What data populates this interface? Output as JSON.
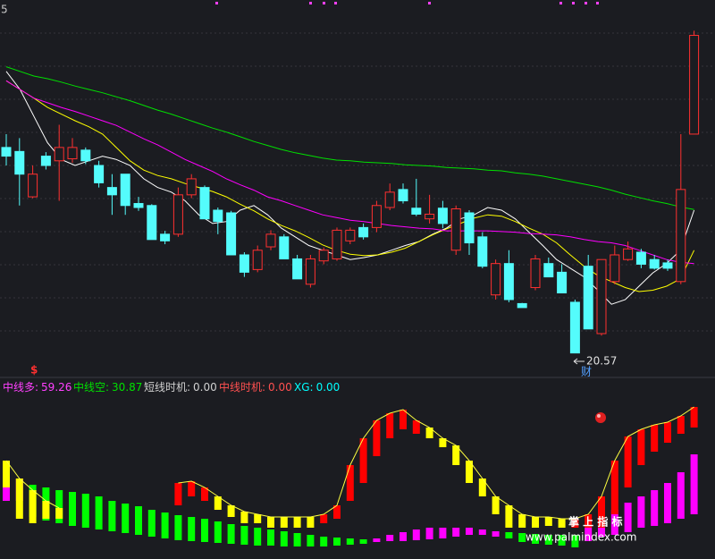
{
  "chart_data": [
    {
      "type": "candlestick",
      "corner_label": "5",
      "low_label": "20.57",
      "marker_label": "财",
      "signal_label": "$",
      "up_color": "#ff3030",
      "down_color": "#54fcfc",
      "ylim": [
        20.23,
        25.86
      ],
      "open": [
        23.65,
        23.59,
        22.91,
        23.52,
        23.45,
        23.48,
        23.61,
        23.38,
        23.05,
        23.25,
        22.81,
        22.78,
        22.35,
        22.35,
        22.94,
        23.05,
        22.71,
        22.67,
        22.04,
        21.82,
        22.16,
        22.31,
        21.98,
        21.6,
        21.95,
        21.98,
        22.25,
        22.45,
        22.45,
        22.75,
        23.02,
        22.74,
        22.58,
        22.74,
        22.11,
        22.67,
        22.31,
        21.44,
        21.91,
        21.31,
        21.55,
        21.91,
        21.78,
        21.33,
        21.87,
        20.86,
        21.64,
        21.97,
        22.08,
        21.97,
        21.92,
        21.64,
        23.85
      ],
      "high": [
        23.85,
        23.79,
        23.38,
        23.58,
        23.99,
        23.79,
        23.65,
        23.45,
        23.25,
        23.25,
        22.91,
        22.8,
        22.4,
        23.05,
        23.25,
        23.08,
        22.75,
        22.7,
        22.08,
        22.18,
        22.41,
        22.35,
        22.04,
        22.04,
        22.15,
        22.45,
        22.45,
        22.51,
        22.85,
        23.11,
        23.11,
        23.18,
        22.94,
        22.85,
        22.78,
        22.71,
        22.38,
        21.97,
        22.11,
        21.32,
        22.04,
        22.0,
        21.9,
        21.37,
        22.04,
        21.97,
        22.18,
        22.24,
        22.13,
        22.04,
        21.97,
        23.85,
        25.4
      ],
      "low": [
        23.38,
        22.78,
        22.89,
        23.32,
        22.85,
        23.42,
        23.4,
        23.05,
        22.64,
        22.64,
        22.7,
        22.27,
        22.2,
        22.31,
        22.89,
        22.58,
        22.35,
        22.04,
        21.71,
        21.78,
        22.11,
        21.98,
        21.68,
        21.55,
        21.9,
        21.95,
        22.2,
        22.27,
        22.38,
        22.71,
        22.81,
        22.62,
        22.51,
        22.44,
        22.04,
        22.04,
        21.84,
        21.37,
        21.33,
        21.25,
        21.51,
        21.71,
        21.47,
        20.57,
        20.93,
        20.83,
        21.6,
        21.95,
        21.84,
        21.82,
        21.8,
        21.6,
        23.85
      ],
      "close": [
        23.52,
        23.25,
        23.25,
        23.38,
        23.65,
        23.65,
        23.45,
        23.12,
        22.94,
        22.78,
        22.75,
        22.27,
        22.25,
        22.94,
        23.18,
        22.58,
        22.54,
        22.04,
        21.78,
        22.11,
        22.35,
        21.98,
        21.68,
        21.98,
        22.11,
        22.41,
        22.41,
        22.31,
        22.78,
        22.98,
        22.85,
        22.65,
        22.65,
        22.51,
        22.73,
        22.22,
        21.87,
        21.91,
        21.37,
        21.25,
        21.98,
        21.71,
        21.47,
        20.57,
        20.93,
        21.97,
        22.04,
        22.13,
        21.9,
        21.84,
        21.84,
        23.02,
        25.33
      ],
      "series": [
        {
          "color": "#ffffff",
          "values": [
            24.79,
            24.52,
            24.12,
            23.72,
            23.47,
            23.38,
            23.45,
            23.52,
            23.47,
            23.38,
            23.18,
            23.05,
            22.98,
            22.85,
            22.64,
            22.51,
            22.54,
            22.71,
            22.78,
            22.64,
            22.44,
            22.31,
            22.18,
            22.11,
            22.04,
            21.97,
            22.0,
            22.04,
            22.11,
            22.18,
            22.24,
            22.35,
            22.44,
            22.58,
            22.64,
            22.75,
            22.71,
            22.58,
            22.38,
            22.18,
            21.97,
            21.84,
            21.71,
            21.51,
            21.3,
            21.37,
            21.57,
            21.77,
            21.91,
            22.11,
            22.71
          ]
        },
        {
          "color": "#ffff00",
          "values": [
            24.65,
            24.52,
            24.39,
            24.25,
            24.15,
            24.05,
            23.96,
            23.85,
            23.65,
            23.45,
            23.31,
            23.23,
            23.18,
            23.11,
            23.05,
            22.99,
            22.91,
            22.8,
            22.7,
            22.58,
            22.48,
            22.4,
            22.3,
            22.19,
            22.11,
            22.05,
            22.03,
            22.04,
            22.08,
            22.14,
            22.24,
            22.34,
            22.43,
            22.51,
            22.59,
            22.64,
            22.62,
            22.54,
            22.44,
            22.35,
            22.22,
            22.04,
            21.87,
            21.73,
            21.64,
            21.55,
            21.49,
            21.51,
            21.57,
            21.68,
            22.11
          ]
        },
        {
          "color": "#ff00ff",
          "values": [
            24.65,
            24.52,
            24.39,
            24.32,
            24.25,
            24.19,
            24.12,
            24.05,
            23.98,
            23.88,
            23.78,
            23.69,
            23.58,
            23.47,
            23.38,
            23.29,
            23.18,
            23.09,
            23.01,
            22.91,
            22.85,
            22.78,
            22.71,
            22.64,
            22.6,
            22.56,
            22.54,
            22.51,
            22.48,
            22.46,
            22.44,
            22.43,
            22.4,
            22.4,
            22.4,
            22.4,
            22.39,
            22.38,
            22.36,
            22.35,
            22.34,
            22.31,
            22.27,
            22.24,
            22.22,
            22.18,
            22.11,
            22.04,
            21.97,
            21.93,
            21.91
          ]
        },
        {
          "color": "#00e000",
          "values": [
            24.86,
            24.79,
            24.72,
            24.68,
            24.63,
            24.57,
            24.52,
            24.47,
            24.41,
            24.35,
            24.28,
            24.21,
            24.15,
            24.08,
            24.01,
            23.94,
            23.88,
            23.81,
            23.74,
            23.68,
            23.62,
            23.57,
            23.53,
            23.49,
            23.46,
            23.45,
            23.43,
            23.42,
            23.41,
            23.39,
            23.38,
            23.37,
            23.35,
            23.34,
            23.33,
            23.31,
            23.3,
            23.27,
            23.25,
            23.22,
            23.18,
            23.14,
            23.1,
            23.06,
            23.01,
            22.95,
            22.9,
            22.85,
            22.81,
            22.76,
            22.72
          ]
        }
      ]
    },
    {
      "type": "indicator",
      "header": [
        {
          "name": "中线多:",
          "value": "59.26",
          "color": "#ff40ff"
        },
        {
          "name": "中线空:",
          "value": "30.87",
          "color": "#00e000"
        },
        {
          "name": "短线时机:",
          "value": "0.00",
          "color": "#d0d0d0"
        },
        {
          "name": "中线时机:",
          "value": "0.00",
          "color": "#ff5050"
        },
        {
          "name": "XG:",
          "value": "0.00",
          "color": "#00ffff"
        }
      ],
      "ylim": [
        0,
        100
      ],
      "upper": {
        "top": [
          52.5,
          42.5,
          36,
          30,
          26,
          null,
          null,
          null,
          null,
          null,
          null,
          null,
          null,
          40,
          41,
          37.5,
          32.5,
          27.5,
          24,
          22.5,
          21,
          21,
          21,
          21,
          22.5,
          27.5,
          50,
          65,
          75,
          79,
          81,
          75,
          71,
          65,
          61,
          52.5,
          42.5,
          32.5,
          27.5,
          22.5,
          21,
          21,
          20,
          20,
          22.5,
          32.5,
          52.5,
          66,
          70,
          72.5,
          74,
          77.5,
          82.5
        ],
        "bottom": [
          37.5,
          20,
          17.5,
          20,
          20,
          null,
          null,
          null,
          null,
          null,
          null,
          null,
          null,
          27.5,
          32.5,
          30,
          25,
          21,
          17.5,
          17.5,
          15,
          15,
          15,
          15,
          17.5,
          20,
          30,
          40,
          55,
          65,
          70,
          67.5,
          65,
          60,
          50,
          40,
          32.5,
          22.5,
          15,
          15,
          15,
          16,
          15,
          15,
          15,
          15,
          22.5,
          37.5,
          50,
          57.5,
          62.5,
          67.5,
          71
        ],
        "colors": [
          "#ffff00",
          "#ffff00",
          "#ffff00",
          "#ffff00",
          "#ffff00",
          null,
          null,
          null,
          null,
          null,
          null,
          null,
          null,
          "#ff0000",
          "#ff0000",
          "#ff0000",
          "#ffff00",
          "#ffff00",
          "#ffff00",
          "#ffff00",
          "#ffff00",
          "#ffff00",
          "#ffff00",
          "#ffff00",
          "#ff0000",
          "#ff0000",
          "#ff0000",
          "#ff0000",
          "#ff0000",
          "#ff0000",
          "#ff0000",
          "#ff0000",
          "#ffff00",
          "#ffff00",
          "#ffff00",
          "#ffff00",
          "#ffff00",
          "#ffff00",
          "#ffff00",
          "#ffff00",
          "#ffff00",
          "#ffff00",
          "#ffff00",
          "#ff0000",
          "#ff0000",
          "#ff0000",
          "#ff0000",
          "#ff0000",
          "#ff0000",
          "#ff0000",
          "#ff0000",
          "#ff0000",
          "#ff0000"
        ]
      },
      "lower": {
        "top": [
          50,
          42.5,
          39,
          37.5,
          36,
          35,
          34,
          32.5,
          30,
          28.5,
          27,
          25,
          23.5,
          22,
          21,
          20,
          18.5,
          17,
          16,
          15,
          14,
          13,
          12,
          11,
          10,
          9.5,
          9,
          8.5,
          9,
          11,
          12.5,
          14,
          15,
          15,
          15,
          15,
          14,
          13,
          12.5,
          12,
          11.5,
          11,
          11,
          11,
          15,
          20,
          25,
          29,
          32.5,
          36,
          40,
          46,
          56
        ],
        "bottom": [
          30,
          30,
          21,
          19,
          17.5,
          16,
          15,
          14,
          13,
          12,
          11,
          10,
          9,
          8,
          7.5,
          7,
          6.5,
          6,
          5.5,
          5,
          5,
          4.5,
          4.5,
          4.5,
          4.5,
          5,
          5.5,
          6,
          7,
          7.5,
          7.5,
          8,
          8.5,
          9,
          10,
          11,
          11,
          10,
          9,
          7,
          6,
          5.5,
          5,
          4,
          7.5,
          10,
          11,
          12.5,
          15,
          16,
          17.5,
          20,
          22.5
        ],
        "colors": [
          "#ff00ff",
          "#ff00ff",
          "#00ff00",
          "#00ff00",
          "#00ff00",
          "#00ff00",
          "#00ff00",
          "#00ff00",
          "#00ff00",
          "#00ff00",
          "#00ff00",
          "#00ff00",
          "#00ff00",
          "#00ff00",
          "#00ff00",
          "#00ff00",
          "#00ff00",
          "#00ff00",
          "#00ff00",
          "#00ff00",
          "#00ff00",
          "#00ff00",
          "#00ff00",
          "#00ff00",
          "#00ff00",
          "#00ff00",
          "#00ff00",
          "#00ff00",
          "#ff00ff",
          "#ff00ff",
          "#ff00ff",
          "#ff00ff",
          "#ff00ff",
          "#ff00ff",
          "#ff00ff",
          "#ff00ff",
          "#ff00ff",
          "#ff00ff",
          "#00ff00",
          "#00ff00",
          "#00ff00",
          "#00ff00",
          "#00ff00",
          "#00ff00",
          "#ff00ff",
          "#ff00ff",
          "#ff00ff",
          "#ff00ff",
          "#ff00ff",
          "#ff00ff",
          "#ff00ff",
          "#ff00ff",
          "#ff00ff"
        ]
      }
    }
  ],
  "watermark": {
    "cn": "掌 上 指 标",
    "url": "www.palmindex.com"
  }
}
